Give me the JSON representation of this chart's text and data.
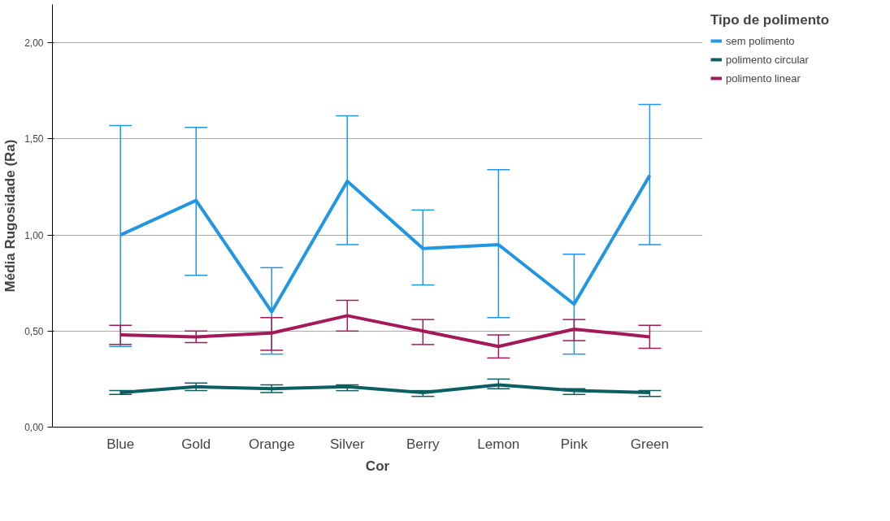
{
  "chart_data": {
    "type": "line",
    "xlabel": "Cor",
    "ylabel": "Média Rugosidade (Ra)",
    "legend_title": "Tipo de polimento",
    "categories": [
      "Blue",
      "Gold",
      "Orange",
      "Silver",
      "Berry",
      "Lemon",
      "Pink",
      "Green"
    ],
    "ylim": [
      0,
      2.2
    ],
    "yticks": [
      {
        "value": 0,
        "label": "0,00"
      },
      {
        "value": 0.5,
        "label": "0,50"
      },
      {
        "value": 1,
        "label": "1,00"
      },
      {
        "value": 1.5,
        "label": "1,50"
      },
      {
        "value": 2,
        "label": "2,00"
      }
    ],
    "grid": "y",
    "legend": "top right",
    "marker": "none",
    "line_style": "solid",
    "series": [
      {
        "name": "sem polimento",
        "color": "#2196e3",
        "values": [
          1.0,
          1.18,
          0.6,
          1.28,
          0.93,
          0.95,
          0.64,
          1.31
        ],
        "errors": [
          [
            0.42,
            1.57
          ],
          [
            0.79,
            1.56
          ],
          [
            0.38,
            0.83
          ],
          [
            0.95,
            1.62
          ],
          [
            0.74,
            1.13
          ],
          [
            0.57,
            1.34
          ],
          [
            0.38,
            0.9
          ],
          [
            0.95,
            1.68
          ]
        ]
      },
      {
        "name": "polimento circular",
        "color": "#0b5e61",
        "values": [
          0.18,
          0.21,
          0.2,
          0.21,
          0.18,
          0.22,
          0.19,
          0.18
        ],
        "errors": [
          [
            0.17,
            0.19
          ],
          [
            0.19,
            0.23
          ],
          [
            0.18,
            0.22
          ],
          [
            0.19,
            0.22
          ],
          [
            0.16,
            0.19
          ],
          [
            0.2,
            0.25
          ],
          [
            0.17,
            0.2
          ],
          [
            0.16,
            0.19
          ]
        ]
      },
      {
        "name": "polimento linear",
        "color": "#a3195b",
        "values": [
          0.48,
          0.47,
          0.49,
          0.58,
          0.5,
          0.42,
          0.51,
          0.47
        ],
        "errors": [
          [
            0.43,
            0.53
          ],
          [
            0.44,
            0.5
          ],
          [
            0.4,
            0.57
          ],
          [
            0.5,
            0.66
          ],
          [
            0.43,
            0.56
          ],
          [
            0.36,
            0.48
          ],
          [
            0.45,
            0.56
          ],
          [
            0.41,
            0.53
          ]
        ]
      }
    ]
  }
}
